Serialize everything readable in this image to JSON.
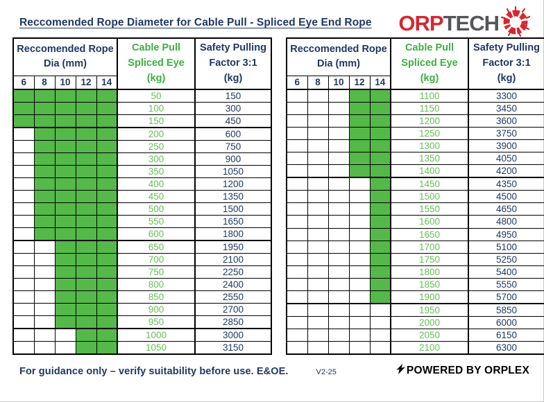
{
  "title": "Reccomended Rope Diameter for Cable Pull - Spliced Eye End Rope",
  "logo": {
    "part1": "ORP",
    "part2": "TECH",
    "red": "#d7282f",
    "gray": "#55565a",
    "icon": "red-sunburst-ring-icon"
  },
  "colors": {
    "navy_text": "#1f3864",
    "green_cell_fill": "#54b948",
    "green_header_text": "#3cb043",
    "green_value_text": "#66bf55",
    "table_border": "#000000"
  },
  "header": {
    "dia_title": "Reccomended Rope\nDia (mm)",
    "dia_columns": [
      "6",
      "8",
      "10",
      "12",
      "14"
    ],
    "cable_pull_label": "Cable Pull\nSpliced Eye\n(kg)",
    "safety_label": "Safety Pulling\nFactor 3:1\n(kg)"
  },
  "tables": [
    {
      "thick_after": [
        150,
        600,
        950
      ],
      "rows": [
        {
          "pull": "50",
          "safety": "150",
          "green": [
            6,
            8,
            10,
            12,
            14
          ]
        },
        {
          "pull": "100",
          "safety": "300",
          "green": [
            6,
            8,
            10,
            12,
            14
          ]
        },
        {
          "pull": "150",
          "safety": "450",
          "green": [
            6,
            8,
            10,
            12,
            14
          ]
        },
        {
          "pull": "200",
          "safety": "600",
          "green": [
            8,
            10,
            12,
            14
          ]
        },
        {
          "pull": "250",
          "safety": "750",
          "green": [
            8,
            10,
            12,
            14
          ]
        },
        {
          "pull": "300",
          "safety": "900",
          "green": [
            8,
            10,
            12,
            14
          ]
        },
        {
          "pull": "350",
          "safety": "1050",
          "green": [
            8,
            10,
            12,
            14
          ]
        },
        {
          "pull": "400",
          "safety": "1200",
          "green": [
            8,
            10,
            12,
            14
          ]
        },
        {
          "pull": "450",
          "safety": "1350",
          "green": [
            8,
            10,
            12,
            14
          ]
        },
        {
          "pull": "500",
          "safety": "1500",
          "green": [
            8,
            10,
            12,
            14
          ]
        },
        {
          "pull": "550",
          "safety": "1650",
          "green": [
            8,
            10,
            12,
            14
          ]
        },
        {
          "pull": "600",
          "safety": "1800",
          "green": [
            8,
            10,
            12,
            14
          ]
        },
        {
          "pull": "650",
          "safety": "1950",
          "green": [
            10,
            12,
            14
          ]
        },
        {
          "pull": "700",
          "safety": "2100",
          "green": [
            10,
            12,
            14
          ]
        },
        {
          "pull": "750",
          "safety": "2250",
          "green": [
            10,
            12,
            14
          ]
        },
        {
          "pull": "800",
          "safety": "2400",
          "green": [
            10,
            12,
            14
          ]
        },
        {
          "pull": "850",
          "safety": "2550",
          "green": [
            10,
            12,
            14
          ]
        },
        {
          "pull": "900",
          "safety": "2700",
          "green": [
            10,
            12,
            14
          ]
        },
        {
          "pull": "950",
          "safety": "2850",
          "green": [
            10,
            12,
            14
          ]
        },
        {
          "pull": "1000",
          "safety": "3000",
          "green": [
            12,
            14
          ]
        },
        {
          "pull": "1050",
          "safety": "3150",
          "green": [
            12,
            14
          ]
        }
      ]
    },
    {
      "thick_after": [
        1400,
        1900
      ],
      "rows": [
        {
          "pull": "1100",
          "safety": "3300",
          "green": [
            12,
            14
          ]
        },
        {
          "pull": "1150",
          "safety": "3450",
          "green": [
            12,
            14
          ]
        },
        {
          "pull": "1200",
          "safety": "3600",
          "green": [
            12,
            14
          ]
        },
        {
          "pull": "1250",
          "safety": "3750",
          "green": [
            12,
            14
          ]
        },
        {
          "pull": "1300",
          "safety": "3900",
          "green": [
            12,
            14
          ]
        },
        {
          "pull": "1350",
          "safety": "4050",
          "green": [
            12,
            14
          ]
        },
        {
          "pull": "1400",
          "safety": "4200",
          "green": [
            12,
            14
          ]
        },
        {
          "pull": "1450",
          "safety": "4350",
          "green": [
            14
          ]
        },
        {
          "pull": "1500",
          "safety": "4500",
          "green": [
            14
          ]
        },
        {
          "pull": "1550",
          "safety": "4650",
          "green": [
            14
          ]
        },
        {
          "pull": "1600",
          "safety": "4800",
          "green": [
            14
          ]
        },
        {
          "pull": "1650",
          "safety": "4950",
          "green": [
            14
          ]
        },
        {
          "pull": "1700",
          "safety": "5100",
          "green": [
            14
          ]
        },
        {
          "pull": "1750",
          "safety": "5250",
          "green": [
            14
          ]
        },
        {
          "pull": "1800",
          "safety": "5400",
          "green": [
            14
          ]
        },
        {
          "pull": "1850",
          "safety": "5550",
          "green": [
            14
          ]
        },
        {
          "pull": "1900",
          "safety": "5700",
          "green": [
            14
          ]
        },
        {
          "pull": "1950",
          "safety": "5850",
          "green": []
        },
        {
          "pull": "2000",
          "safety": "6000",
          "green": []
        },
        {
          "pull": "2050",
          "safety": "6150",
          "green": []
        },
        {
          "pull": "2100",
          "safety": "6300",
          "green": []
        }
      ]
    }
  ],
  "footer": {
    "note": "For guidance only – verify suitability before use. E&OE.",
    "version": "V2-25",
    "powered_by": "POWERED BY ORPLEX",
    "powered_icon": "lightning-bolt-icon"
  }
}
